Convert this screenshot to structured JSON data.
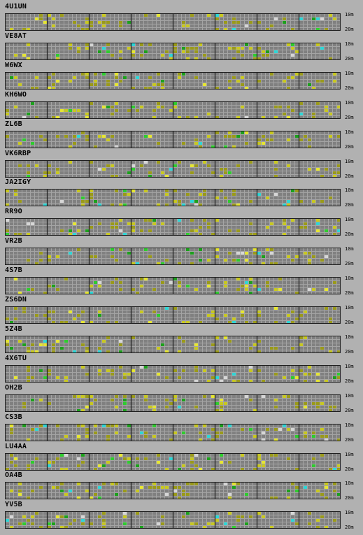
{
  "legend": {
    "band_top": "10m",
    "band_bottom": "20m"
  },
  "stations": [
    {
      "call": "4U1UN"
    },
    {
      "call": "VE8AT"
    },
    {
      "call": "W6WX"
    },
    {
      "call": "KH6WO"
    },
    {
      "call": "ZL6B"
    },
    {
      "call": "VK6RBP"
    },
    {
      "call": "JA2IGY"
    },
    {
      "call": "RR9O"
    },
    {
      "call": "VR2B"
    },
    {
      "call": "4S7B"
    },
    {
      "call": "ZS6DN"
    },
    {
      "call": "5Z4B"
    },
    {
      "call": "4X6TU"
    },
    {
      "call": "OH2B"
    },
    {
      "call": "CS3B"
    },
    {
      "call": "LU4AA"
    },
    {
      "call": "OA4B"
    },
    {
      "call": "YV5B"
    }
  ],
  "colors": {
    "bg": "#b1b1b1",
    "cell": "#808080",
    "grid_line": "#a4a4a4",
    "major_line": "#1e1e1e",
    "levels": [
      "#9a9a1a",
      "#c8c820",
      "#e6e632",
      "#1ca01c",
      "#2ecc2e",
      "#2ed6d6",
      "#d6d6d6"
    ]
  }
}
